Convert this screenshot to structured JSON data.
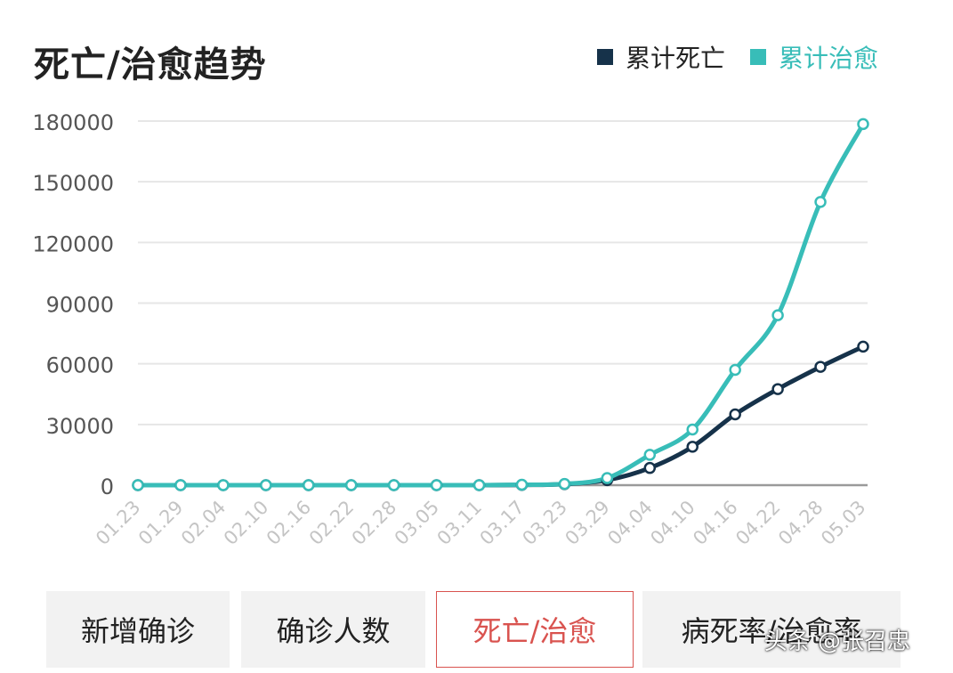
{
  "title": "死亡/治愈趋势",
  "legend": [
    {
      "label": "累计死亡",
      "color": "#16324a"
    },
    {
      "label": "累计治愈",
      "color": "#38bdb8"
    }
  ],
  "tabs": [
    {
      "label": "新增确诊",
      "active": false
    },
    {
      "label": "确诊人数",
      "active": false
    },
    {
      "label": "死亡/治愈",
      "active": true
    },
    {
      "label": "病死率/治愈率",
      "active": false
    }
  ],
  "watermark": "头条 @张召忠",
  "chart_data": {
    "type": "line",
    "title": "死亡/治愈趋势",
    "xlabel": "",
    "ylabel": "",
    "ylim": [
      0,
      180000
    ],
    "yticks": [
      0,
      30000,
      60000,
      90000,
      120000,
      150000,
      180000
    ],
    "x_ticks": [
      "01.23",
      "01.29",
      "02.04",
      "02.10",
      "02.16",
      "02.22",
      "02.28",
      "03.05",
      "03.11",
      "03.17",
      "03.23",
      "03.29",
      "04.04",
      "04.10",
      "04.16",
      "04.22",
      "04.28",
      "05.03"
    ],
    "grid": true,
    "legend_position": "top-right",
    "series": [
      {
        "name": "累计死亡",
        "color": "#16324a",
        "values": [
          0,
          0,
          0,
          0,
          0,
          0,
          0,
          0,
          0,
          100,
          500,
          2500,
          8500,
          19000,
          35000,
          47500,
          58500,
          68500
        ]
      },
      {
        "name": "累计治愈",
        "color": "#38bdb8",
        "values": [
          0,
          0,
          0,
          0,
          0,
          0,
          0,
          0,
          0,
          200,
          600,
          3500,
          15000,
          27500,
          57000,
          84000,
          140000,
          178500
        ]
      }
    ]
  }
}
